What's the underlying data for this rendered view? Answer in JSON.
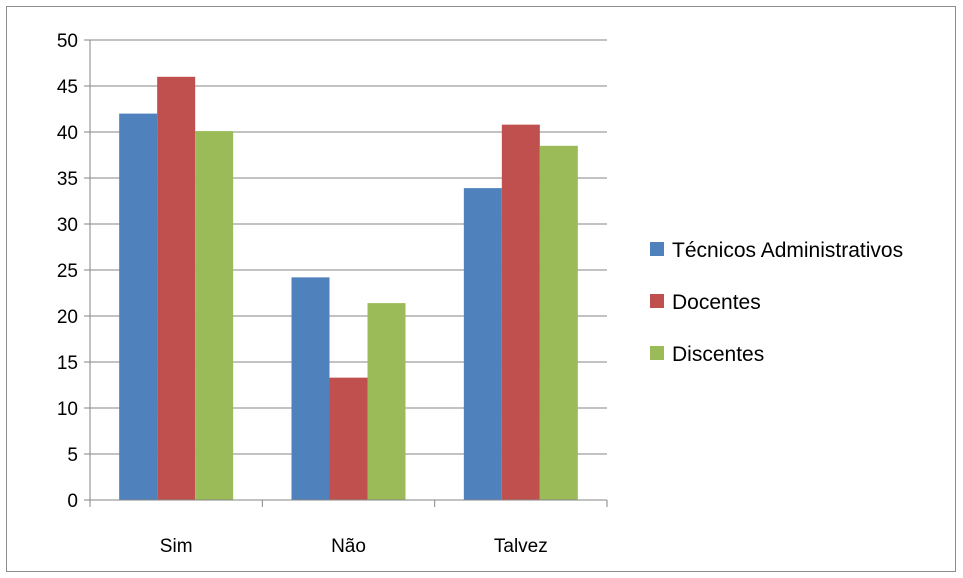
{
  "chart_data": {
    "type": "bar",
    "title": "",
    "xlabel": "",
    "ylabel": "",
    "categories": [
      "Sim",
      "Não",
      "Talvez"
    ],
    "series": [
      {
        "name": "Técnicos Administrativos",
        "color": "#4f81bd",
        "values": [
          42,
          24.2,
          33.9
        ]
      },
      {
        "name": "Docentes",
        "color": "#c0504d",
        "values": [
          46,
          13.3,
          40.8
        ]
      },
      {
        "name": "Discentes",
        "color": "#9bbb59",
        "values": [
          40.1,
          21.4,
          38.5
        ]
      }
    ],
    "ylim": [
      0,
      50
    ],
    "yticks": [
      0,
      5,
      10,
      15,
      20,
      25,
      30,
      35,
      40,
      45,
      50
    ],
    "grid": true,
    "legend_position": "right"
  }
}
